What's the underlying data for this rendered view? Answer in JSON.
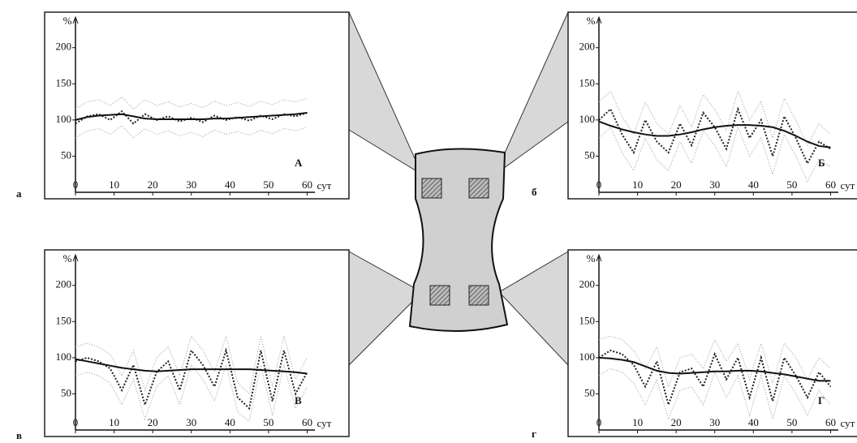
{
  "chart_data": [
    {
      "type": "line",
      "panel_label": "а",
      "letter": "А",
      "ylabel": "%",
      "xlabel": "сут",
      "x": [
        0,
        3,
        6,
        9,
        12,
        15,
        18,
        21,
        24,
        27,
        30,
        33,
        36,
        39,
        42,
        45,
        48,
        51,
        54,
        57,
        60
      ],
      "xlim": [
        0,
        62
      ],
      "ylim": [
        0,
        230
      ],
      "xticks": [
        0,
        10,
        20,
        30,
        40,
        50,
        60
      ],
      "yticks": [
        50,
        100,
        150,
        200
      ],
      "series": [
        {
          "color": "#999",
          "style": "dotted-light",
          "values": [
            115,
            125,
            128,
            120,
            132,
            115,
            128,
            120,
            125,
            118,
            123,
            117,
            126,
            120,
            124,
            119,
            126,
            121,
            128,
            125,
            130
          ]
        },
        {
          "color": "#999",
          "style": "dotted-light",
          "values": [
            75,
            85,
            88,
            80,
            92,
            75,
            88,
            80,
            85,
            78,
            83,
            77,
            86,
            80,
            84,
            79,
            86,
            81,
            88,
            85,
            90
          ]
        },
        {
          "color": "#222",
          "style": "dotted-bold",
          "values": [
            95,
            105,
            108,
            100,
            112,
            95,
            108,
            100,
            105,
            98,
            103,
            97,
            106,
            100,
            104,
            99,
            106,
            101,
            108,
            105,
            110
          ]
        },
        {
          "color": "#111",
          "style": "solid",
          "values": [
            100,
            104,
            106,
            107,
            108,
            105,
            102,
            101,
            101,
            101,
            101,
            101,
            102,
            102,
            103,
            104,
            105,
            106,
            107,
            108,
            110
          ]
        }
      ]
    },
    {
      "type": "line",
      "panel_label": "б",
      "letter": "Б",
      "ylabel": "%",
      "xlabel": "сут",
      "x": [
        0,
        3,
        6,
        9,
        12,
        15,
        18,
        21,
        24,
        27,
        30,
        33,
        36,
        39,
        42,
        45,
        48,
        51,
        54,
        57,
        60
      ],
      "xlim": [
        0,
        62
      ],
      "ylim": [
        0,
        230
      ],
      "xticks": [
        0,
        10,
        20,
        30,
        40,
        50,
        60
      ],
      "yticks": [
        50,
        100,
        150,
        200
      ],
      "series": [
        {
          "color": "#999",
          "style": "dotted-light",
          "values": [
            125,
            140,
            105,
            80,
            125,
            95,
            80,
            120,
            90,
            135,
            115,
            85,
            140,
            100,
            125,
            75,
            130,
            100,
            65,
            95,
            80
          ]
        },
        {
          "color": "#999",
          "style": "dotted-light",
          "values": [
            75,
            90,
            55,
            30,
            75,
            45,
            30,
            70,
            40,
            85,
            65,
            35,
            90,
            50,
            75,
            25,
            80,
            50,
            15,
            45,
            35
          ]
        },
        {
          "color": "#222",
          "style": "dotted-bold",
          "values": [
            100,
            115,
            80,
            55,
            100,
            70,
            55,
            95,
            65,
            110,
            90,
            60,
            115,
            75,
            100,
            50,
            105,
            75,
            40,
            70,
            60
          ]
        },
        {
          "color": "#111",
          "style": "solid",
          "values": [
            98,
            92,
            87,
            83,
            80,
            78,
            78,
            80,
            83,
            87,
            90,
            92,
            93,
            93,
            92,
            90,
            85,
            78,
            70,
            64,
            62
          ]
        }
      ]
    },
    {
      "type": "line",
      "panel_label": "в",
      "letter": "В",
      "ylabel": "%",
      "xlabel": "сут",
      "x": [
        0,
        3,
        6,
        9,
        12,
        15,
        18,
        21,
        24,
        27,
        30,
        33,
        36,
        39,
        42,
        45,
        48,
        51,
        54,
        57,
        60
      ],
      "xlim": [
        0,
        62
      ],
      "ylim": [
        0,
        230
      ],
      "xticks": [
        0,
        10,
        20,
        30,
        40,
        50,
        60
      ],
      "yticks": [
        50,
        100,
        150,
        200
      ],
      "series": [
        {
          "color": "#999",
          "style": "dotted-light",
          "values": [
            115,
            120,
            115,
            105,
            75,
            110,
            55,
            100,
            115,
            75,
            130,
            110,
            80,
            130,
            65,
            50,
            130,
            60,
            130,
            70,
            100
          ]
        },
        {
          "color": "#999",
          "style": "dotted-light",
          "values": [
            75,
            80,
            75,
            65,
            35,
            70,
            15,
            60,
            75,
            35,
            90,
            70,
            40,
            90,
            25,
            12,
            90,
            20,
            90,
            30,
            60
          ]
        },
        {
          "color": "#222",
          "style": "dotted-bold",
          "values": [
            95,
            100,
            95,
            85,
            55,
            90,
            35,
            80,
            95,
            55,
            110,
            90,
            60,
            110,
            45,
            30,
            110,
            40,
            110,
            50,
            80
          ]
        },
        {
          "color": "#111",
          "style": "solid",
          "values": [
            98,
            95,
            92,
            89,
            86,
            84,
            82,
            81,
            82,
            83,
            84,
            84,
            84,
            84,
            84,
            84,
            83,
            82,
            81,
            80,
            78
          ]
        }
      ]
    },
    {
      "type": "line",
      "panel_label": "г",
      "letter": "Г",
      "ylabel": "%",
      "xlabel": "сут",
      "x": [
        0,
        3,
        6,
        9,
        12,
        15,
        18,
        21,
        24,
        27,
        30,
        33,
        36,
        39,
        42,
        45,
        48,
        51,
        54,
        57,
        60
      ],
      "xlim": [
        0,
        62
      ],
      "ylim": [
        0,
        230
      ],
      "xticks": [
        0,
        10,
        20,
        30,
        40,
        50,
        60
      ],
      "yticks": [
        50,
        100,
        150,
        200
      ],
      "series": [
        {
          "color": "#999",
          "style": "dotted-light",
          "values": [
            125,
            130,
            125,
            110,
            85,
            115,
            60,
            100,
            105,
            85,
            125,
            95,
            120,
            70,
            120,
            65,
            120,
            100,
            70,
            100,
            85
          ]
        },
        {
          "color": "#999",
          "style": "dotted-light",
          "values": [
            75,
            85,
            80,
            65,
            35,
            70,
            15,
            55,
            60,
            35,
            80,
            45,
            75,
            20,
            75,
            15,
            75,
            50,
            20,
            55,
            35
          ]
        },
        {
          "color": "#222",
          "style": "dotted-bold",
          "values": [
            100,
            110,
            105,
            90,
            60,
            95,
            35,
            80,
            85,
            60,
            105,
            70,
            100,
            45,
            100,
            40,
            100,
            75,
            45,
            80,
            60
          ]
        },
        {
          "color": "#111",
          "style": "solid",
          "values": [
            100,
            99,
            97,
            94,
            88,
            82,
            79,
            78,
            79,
            80,
            81,
            81,
            82,
            82,
            81,
            79,
            77,
            74,
            71,
            68,
            68
          ]
        }
      ]
    }
  ]
}
